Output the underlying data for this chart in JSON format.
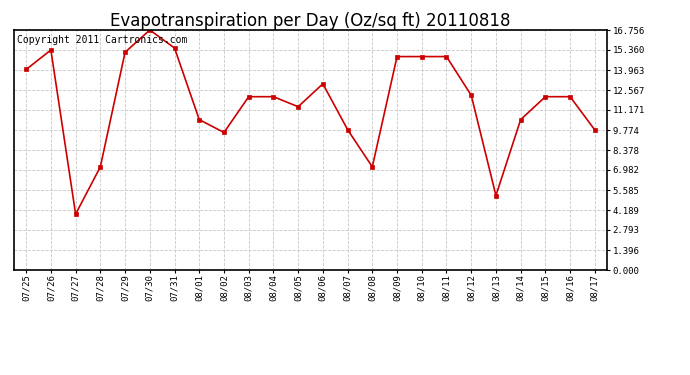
{
  "title": "Evapotranspiration per Day (Oz/sq ft) 20110818",
  "copyright_text": "Copyright 2011 Cartronics.com",
  "x_labels": [
    "07/25",
    "07/26",
    "07/27",
    "07/28",
    "07/29",
    "07/30",
    "07/31",
    "08/01",
    "08/02",
    "08/03",
    "08/04",
    "08/05",
    "08/06",
    "08/07",
    "08/08",
    "08/09",
    "08/10",
    "08/11",
    "08/12",
    "08/13",
    "08/14",
    "08/15",
    "08/16",
    "08/17"
  ],
  "y_values": [
    14.0,
    15.36,
    3.9,
    7.2,
    15.2,
    16.756,
    15.5,
    10.5,
    9.6,
    12.1,
    12.1,
    11.4,
    13.0,
    9.8,
    7.2,
    14.9,
    14.9,
    14.9,
    12.2,
    5.2,
    10.5,
    12.1,
    12.1,
    9.774
  ],
  "line_color": "#cc0000",
  "marker_color": "#cc0000",
  "bg_color": "#ffffff",
  "grid_color": "#c8c8c8",
  "ytick_values": [
    0.0,
    1.396,
    2.793,
    4.189,
    5.585,
    6.982,
    8.378,
    9.774,
    11.171,
    12.567,
    13.963,
    15.36,
    16.756
  ],
  "ylim": [
    0.0,
    16.756
  ],
  "title_fontsize": 12,
  "copyright_fontsize": 7
}
